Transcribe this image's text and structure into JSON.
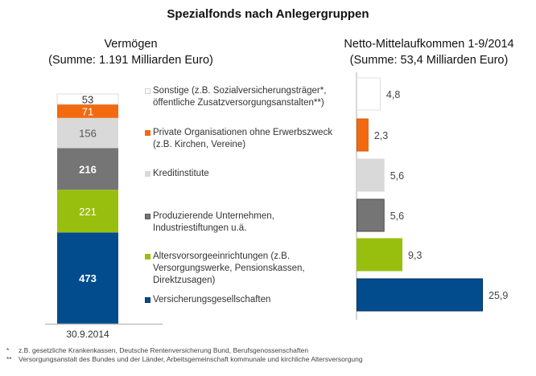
{
  "title": "Spezialfonds nach Anlegergruppen",
  "left_subtitle": [
    "Vermögen",
    "(Summe: 1.191 Milliarden Euro)"
  ],
  "right_subtitle": [
    "Netto-Mittelaufkommen 1-9/2014",
    "(Summe: 53,4 Milliarden Euro)"
  ],
  "legend": [
    {
      "label": "Sonstige (z.B. Sozialversicherungsträger*,\nöffentliche Zusatzversorgungsanstalten**)",
      "color": "#ffffff",
      "border": "#d0d0d0"
    },
    {
      "label": "Private Organisationen ohne Erwerbszweck\n(z.B. Kirchen, Vereine)",
      "color": "#f26a10",
      "border": "#f26a10"
    },
    {
      "label": "Kreditinstitute",
      "color": "#d9d9d9",
      "border": "#d9d9d9"
    },
    {
      "label": "Produzierende Unternehmen,\nIndustriestiftungen u.ä.",
      "color": "#757575",
      "border": "#555555"
    },
    {
      "label": "Altersvorsorgeeinrichtungen (z.B.\nVersorgungswerke, Pensionskassen,\nDirektzusagen)",
      "color": "#99bf0e",
      "border": "#99bf0e"
    },
    {
      "label": "Versicherungsgesellschaften",
      "color": "#024c8e",
      "border": "#003366"
    }
  ],
  "footnotes": [
    {
      "marker": "*",
      "text": "z.B. gesetzliche Krankenkassen, Deutsche Rentenversicherung Bund, Berufsgenossenschaften"
    },
    {
      "marker": "**",
      "text": "Versorgungsanstalt des Bundes und der Länder, Arbeitsgemeinschaft kommunale und kirchliche Altersversorgung"
    }
  ],
  "chart_data": [
    {
      "type": "bar",
      "stacked": true,
      "title": "Vermögen (Summe: 1.191 Milliarden Euro)",
      "categories": [
        "30.9.2014"
      ],
      "unit": "Milliarden Euro",
      "series": [
        {
          "name": "Versicherungsgesellschaften",
          "values": [
            473
          ],
          "label": "473",
          "color": "#024c8e",
          "label_color": "#ffffff",
          "bold": true
        },
        {
          "name": "Altersvorsorgeeinrichtungen",
          "values": [
            221
          ],
          "label": "221",
          "color": "#99bf0e",
          "label_color": "#ffffff",
          "bold": false
        },
        {
          "name": "Produzierende Unternehmen, Industriestiftungen u.ä.",
          "values": [
            216
          ],
          "label": "216",
          "color": "#757575",
          "label_color": "#ffffff",
          "bold": true
        },
        {
          "name": "Kreditinstitute",
          "values": [
            156
          ],
          "label": "156",
          "color": "#d9d9d9",
          "label_color": "#555555",
          "bold": false
        },
        {
          "name": "Private Organisationen ohne Erwerbszweck",
          "values": [
            71
          ],
          "label": "71",
          "color": "#f26a10",
          "label_color": "#ffffff",
          "bold": false
        },
        {
          "name": "Sonstige",
          "values": [
            53
          ],
          "label": "53",
          "color": "#ffffff",
          "label_color": "#333333",
          "bold": false
        }
      ],
      "total": 1191,
      "xlabel": "",
      "ylabel": ""
    },
    {
      "type": "bar",
      "orientation": "horizontal",
      "title": "Netto-Mittelaufkommen 1-9/2014 (Summe: 53,4 Milliarden Euro)",
      "unit": "Milliarden Euro",
      "categories": [
        "Sonstige",
        "Private Organisationen ohne Erwerbszweck",
        "Kreditinstitute",
        "Produzierende Unternehmen",
        "Altersvorsorgeeinrichtungen",
        "Versicherungsgesellschaften"
      ],
      "values": [
        4.8,
        2.3,
        5.6,
        5.6,
        9.3,
        25.9
      ],
      "labels": [
        "4,8",
        "2,3",
        "5,6",
        "5,6",
        "9,3",
        "25,9"
      ],
      "colors": [
        "#ffffff",
        "#f26a10",
        "#d9d9d9",
        "#757575",
        "#99bf0e",
        "#024c8e"
      ],
      "borders": [
        "#e0e0e0",
        "#d45a08",
        "#d9d9d9",
        "#4d4d4d",
        "#99bf0e",
        "#00335f"
      ],
      "xlim": [
        0,
        25.9
      ]
    }
  ]
}
